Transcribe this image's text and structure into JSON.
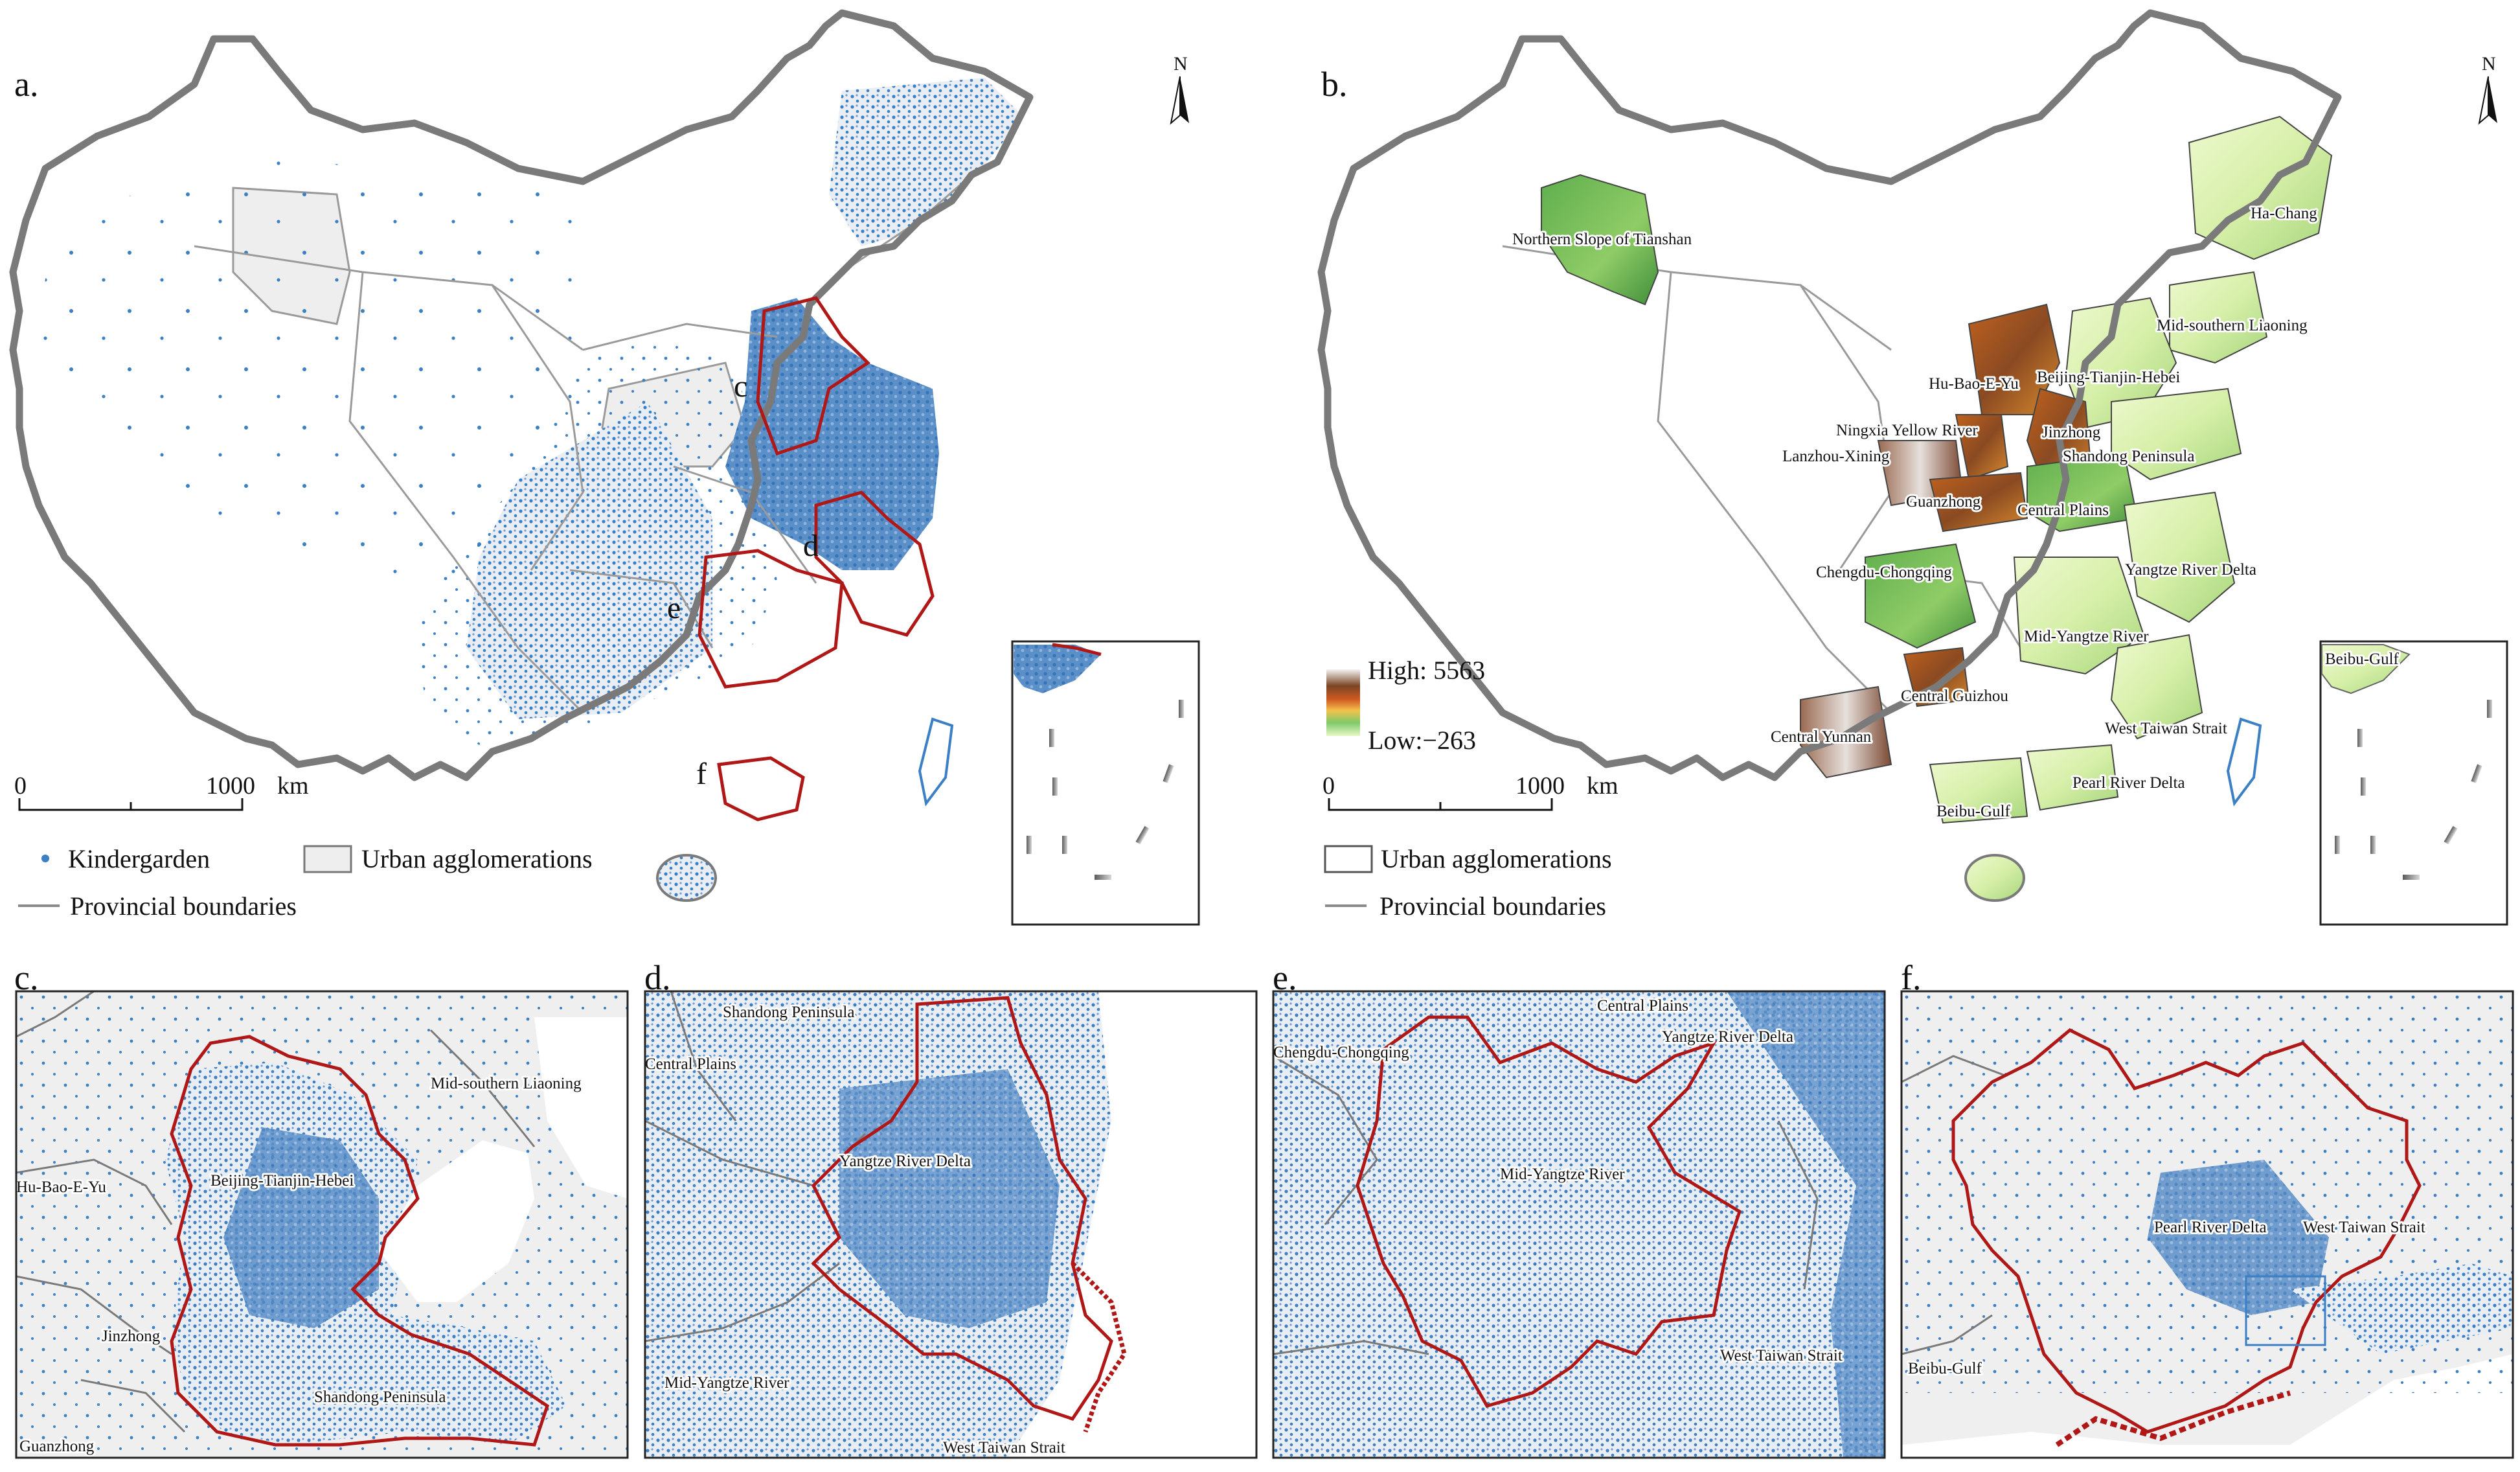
{
  "panels": {
    "a": {
      "letter": "a."
    },
    "b": {
      "letter": "b."
    },
    "c": {
      "letter": "c."
    },
    "d": {
      "letter": "d."
    },
    "e": {
      "letter": "e."
    },
    "f": {
      "letter": "f."
    }
  },
  "north_label": "N",
  "map_a": {
    "inset_letters": [
      "c",
      "d",
      "e",
      "f"
    ],
    "scale": {
      "zero": "0",
      "max": "1000",
      "unit": "km"
    },
    "legend": {
      "kindergarden": "Kindergarden",
      "urban_agglomerations": "Urban agglomerations",
      "provincial_boundaries": "Provincial boundaries"
    }
  },
  "map_b": {
    "elevation_legend": {
      "high": "High: 5563",
      "low": "Low:−263"
    },
    "scale": {
      "zero": "0",
      "max": "1000",
      "unit": "km"
    },
    "legend": {
      "urban_agglomerations": "Urban agglomerations",
      "provincial_boundaries": "Provincial boundaries"
    },
    "labels": [
      "Northern Slope of Tianshan",
      "Ha-Chang",
      "Mid-southern Liaoning",
      "Hu-Bao-E-Yu",
      "Beijing-Tianjin-Hebei",
      "Ningxia Yellow River",
      "Jinzhong",
      "Lanzhou-Xining",
      "Shandong Peninsula",
      "Guanzhong",
      "Central Plains",
      "Yangtze River Delta",
      "Chengdu-Chongqing",
      "Mid-Yangtze River",
      "Central Guizhou",
      "Central Yunnan",
      "West Taiwan Strait",
      "Pearl River Delta",
      "Beibu-Gulf",
      "Beibu-Gulf"
    ]
  },
  "map_c": {
    "labels": [
      "Mid-southern Liaoning",
      "Hu-Bao-E-Yu",
      "Beijing-Tianjin-Hebei",
      "Jinzhong",
      "Shandong Peninsula",
      "Guanzhong"
    ]
  },
  "map_d": {
    "labels": [
      "Shandong Peninsula",
      "Central Plains",
      "Yangtze River Delta",
      "Mid-Yangtze River",
      "West Taiwan Strait"
    ]
  },
  "map_e": {
    "labels": [
      "Central Plains",
      "Chengdu-Chongqing",
      "Yangtze River Delta",
      "Mid-Yangtze River",
      "West Taiwan Strait"
    ]
  },
  "map_f": {
    "labels": [
      "Pearl River Delta",
      "West Taiwan Strait",
      "Beibu-Gulf"
    ]
  },
  "colors": {
    "kindergarden_dot": "#3b7fc4",
    "urban_fill": "#eeeeee",
    "highlight_boundary": "#b01818",
    "national_border": "#7a7a7a",
    "provincial_boundary": "#9a9a9a",
    "elevation_low": "#e9f7c8",
    "elevation_high": "#8a4a22"
  }
}
